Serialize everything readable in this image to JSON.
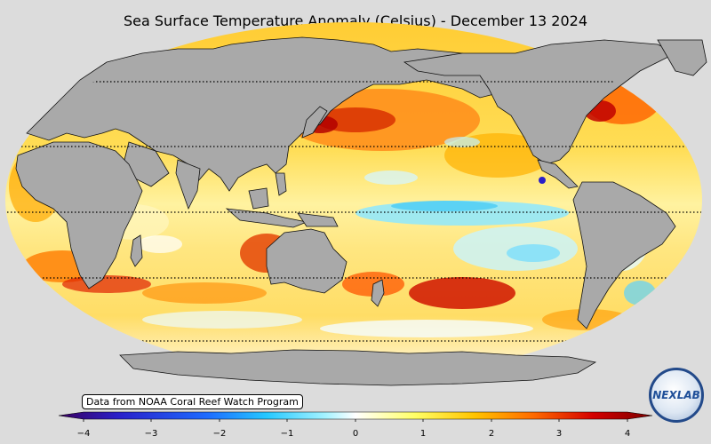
{
  "title": "Sea Surface Temperature Anomaly (Celsius) - December 13 2024",
  "source_note": "Data from NOAA Coral Reef Watch Program",
  "logo_text": "NEXLAB",
  "colorbar": {
    "min": -4,
    "max": 4,
    "ticks": [
      "−4",
      "−3",
      "−2",
      "−1",
      "0",
      "1",
      "2",
      "3",
      "4"
    ],
    "colors": [
      "#3a005e",
      "#2a1fc9",
      "#1e6bff",
      "#25c8ff",
      "#a6f3ff",
      "#ffffff",
      "#ffff66",
      "#ffc400",
      "#ff6a00",
      "#d40000",
      "#7a0000"
    ]
  },
  "map": {
    "projection": "Robinson",
    "land_color": "#a9a9a9",
    "background_color": "#dcdcdc"
  }
}
